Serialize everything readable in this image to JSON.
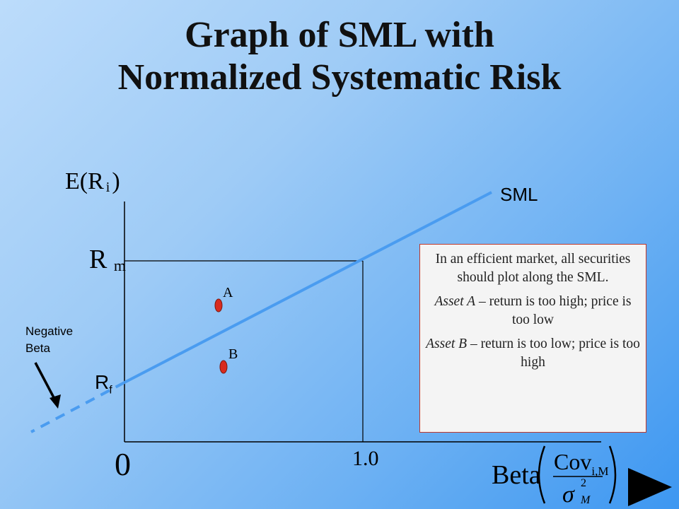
{
  "title": {
    "line1": "Graph of SML with",
    "line2": "Normalized Systematic Risk"
  },
  "axes": {
    "y_label_main": "E(R",
    "y_label_sub": "i",
    "y_label_close": ")",
    "x_origin": "0",
    "x_tick_one": "1.0",
    "x_label": "Beta",
    "cov_label": "Cov",
    "cov_sub": "i,M",
    "sigma": "σ",
    "sigma_sup": "2",
    "sigma_sub": "M"
  },
  "labels": {
    "rm_main": "R",
    "rm_sub": "m",
    "rf_main": "R",
    "rf_sub": "f",
    "sml": "SML",
    "negative_beta": "Negative Beta",
    "point_a": "A",
    "point_b": "B"
  },
  "info_box": {
    "line1": "In an efficient market, all securities should plot along the SML.",
    "line2_italic": "Asset A",
    "line2_rest": " – return is too high; price is too low",
    "line3_italic": "Asset B",
    "line3_rest": " – return is too low; price is too high"
  },
  "colors": {
    "sml_line": "#4a9cf0",
    "point_fill": "#d92b1f",
    "info_border": "#c0392b"
  },
  "icons": {
    "next": "next-arrow-icon"
  }
}
